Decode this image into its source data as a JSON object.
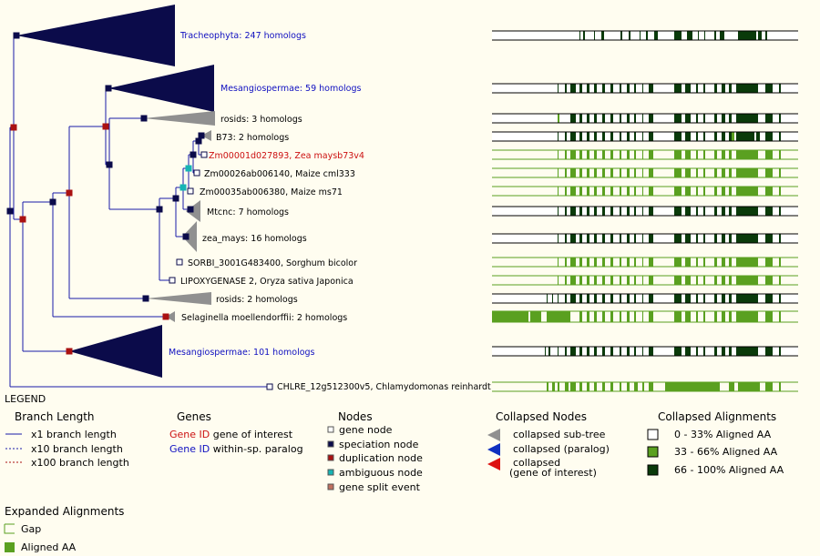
{
  "tree": {
    "colors": {
      "branch": "#1a1aa8",
      "speciation_node": "#0b0b4a",
      "duplication_node": "#aa1111",
      "ambiguous_node": "#16b4b4",
      "collapsed_subtree": "#0b0b4a",
      "collapsed_grey": "#909090",
      "gene_node_fill": "#ffffff"
    },
    "leaves": [
      {
        "label": "Tracheophyta: 247 homologs",
        "color": "#1010c0"
      },
      {
        "label": "Mesangiospermae: 59 homologs",
        "color": "#1010c0"
      },
      {
        "label": "rosids: 3 homologs",
        "color": "#000000"
      },
      {
        "label": "B73: 2 homologs",
        "color": "#000000"
      },
      {
        "label": "Zm00001d027893, Zea maysb73v4",
        "color": "#cc1111"
      },
      {
        "label": "Zm00026ab006140, Maize cml333",
        "color": "#000000"
      },
      {
        "label": "Zm00035ab006380, Maize ms71",
        "color": "#000000"
      },
      {
        "label": "Mtcnc: 7 homologs",
        "color": "#000000"
      },
      {
        "label": "zea_mays: 16 homologs",
        "color": "#000000"
      },
      {
        "label": "SORBI_3001G483400, Sorghum bicolor",
        "color": "#000000"
      },
      {
        "label": "LIPOXYGENASE 2, Oryza sativa Japonica",
        "color": "#000000"
      },
      {
        "label": "rosids: 2 homologs",
        "color": "#000000"
      },
      {
        "label": "Selaginella moellendorffii: 2 homologs",
        "color": "#000000"
      },
      {
        "label": "Mesangiospermae: 101 homologs",
        "color": "#1010c0"
      },
      {
        "label": "CHLRE_12g512300v5, Chlamydomonas reinhardtii",
        "color": "#000000"
      }
    ]
  },
  "alignment": {
    "colors": {
      "high": "#0a3a0a",
      "mid": "#5aa020",
      "low": "#ffffff",
      "gap": "#5aa020"
    }
  },
  "legend": {
    "title": "LEGEND",
    "branch_length": {
      "heading": "Branch Length",
      "items": [
        {
          "text": "x1 branch length",
          "color": "#1a1aa8",
          "style": "solid"
        },
        {
          "text": "x10 branch length",
          "color": "#1a1aa8",
          "style": "dashed"
        },
        {
          "text": "x100 branch length",
          "color": "#aa1111",
          "style": "dashed"
        }
      ]
    },
    "genes": {
      "heading": "Genes",
      "items": [
        {
          "id": "Gene ID",
          "id_color": "#cc1111",
          "text": "gene of interest"
        },
        {
          "id": "Gene ID",
          "id_color": "#1010c0",
          "text": "within-sp. paralog"
        }
      ]
    },
    "nodes": {
      "heading": "Nodes",
      "items": [
        {
          "text": "gene node",
          "color": "#ffffff"
        },
        {
          "text": "speciation node",
          "color": "#0b0b4a"
        },
        {
          "text": "duplication node",
          "color": "#aa1111"
        },
        {
          "text": "ambiguous node",
          "color": "#16b4b4"
        },
        {
          "text": "gene split event",
          "color": "#c07060"
        }
      ]
    },
    "collapsed_nodes": {
      "heading": "Collapsed Nodes",
      "items": [
        {
          "text": "collapsed sub-tree",
          "color": "#909090"
        },
        {
          "text": "collapsed (paralog)",
          "color": "#1030c0"
        },
        {
          "text": "collapsed",
          "text2": "(gene of interest)",
          "color": "#dd1111"
        }
      ]
    },
    "collapsed_alignments": {
      "heading": "Collapsed Alignments",
      "items": [
        {
          "text": "0 - 33% Aligned AA",
          "color": "#ffffff"
        },
        {
          "text": "33 - 66% Aligned AA",
          "color": "#5aa020"
        },
        {
          "text": "66 - 100% Aligned AA",
          "color": "#0a3a0a"
        }
      ]
    },
    "expanded_alignments": {
      "heading": "Expanded Alignments",
      "items": [
        {
          "text": "Gap",
          "kind": "gap"
        },
        {
          "text": "Aligned AA",
          "kind": "aligned"
        }
      ]
    }
  }
}
